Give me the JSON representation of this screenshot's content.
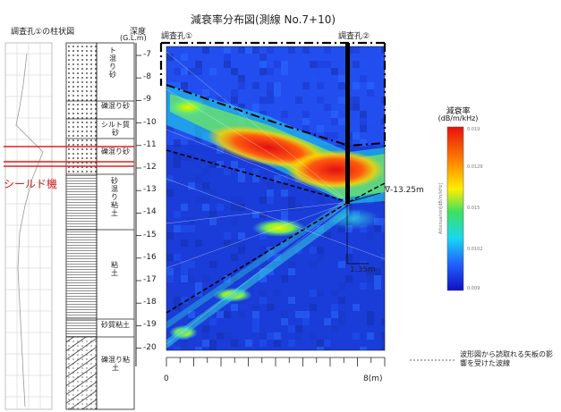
{
  "title": "減衰率分布図(測線 No.7+10)",
  "borehole_column_title": "調査孔①の柱状図",
  "depth_header": "深度",
  "depth_unit": "(G.L.m)",
  "borehole_left": "調査孔①",
  "borehole_right": "調査孔②",
  "depth_ticks": [
    "-7",
    "-8",
    "-9",
    "-10",
    "-11",
    "-12",
    "-13",
    "-14",
    "-15",
    "-16",
    "-17",
    "-18",
    "-19",
    "-20"
  ],
  "soil_layers": [
    {
      "label": "ト混り砂"
    },
    {
      "label": "礫混り砂"
    },
    {
      "label": "シルト質砂"
    },
    {
      "label": "礫混り砂"
    },
    {
      "label": "砂混り粘土"
    },
    {
      "label": "粘土"
    },
    {
      "label": "砂質粘土"
    },
    {
      "label": "礫混り粘土"
    }
  ],
  "shield_label": "シールド機",
  "annotation_depth": "∇-13.25m",
  "annotation_offset": "1.35m",
  "x_axis": {
    "start": "0",
    "end": "8(m)"
  },
  "legend": {
    "title": "減衰率",
    "unit": "(dB/m/kHz)",
    "ticks": [
      "0.019",
      "0.0129",
      "0.015",
      "0.0102",
      "0.009"
    ],
    "axis_label": "Attenuation[dB/m/kHz]"
  },
  "note": "波形図から読取れる矢板の影響を受けた波線",
  "colors": {
    "shield_red": "#e02020",
    "heat_low": "#1a3cff",
    "heat_high": "#e81010"
  }
}
